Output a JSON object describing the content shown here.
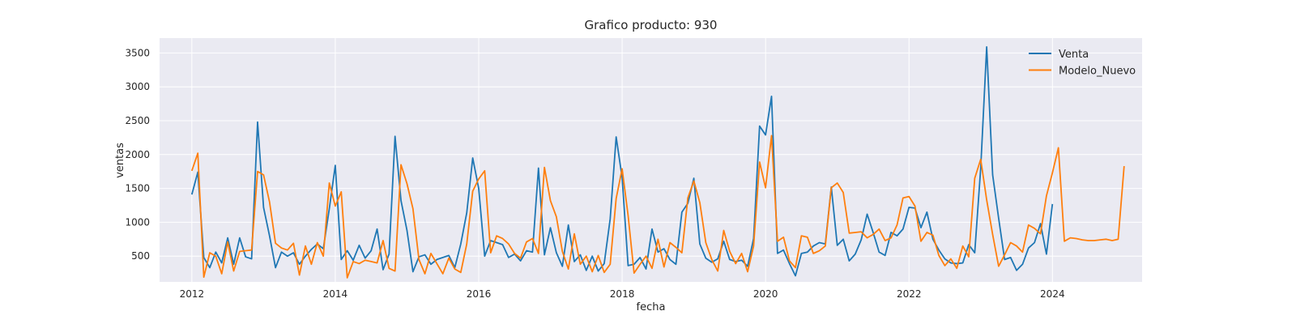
{
  "chart_data": {
    "type": "line",
    "title": "Grafico producto: 930",
    "xlabel": "fecha",
    "ylabel": "ventas",
    "xlim": [
      2011.55,
      2025.25
    ],
    "ylim": [
      120,
      3720
    ],
    "x_ticks": [
      2012,
      2014,
      2016,
      2018,
      2020,
      2022,
      2024
    ],
    "y_ticks": [
      500,
      1000,
      1500,
      2000,
      2500,
      3000,
      3500
    ],
    "grid": true,
    "background_color": "#eaeaf2",
    "legend_position": "upper right",
    "series": [
      {
        "name": "Venta",
        "color": "#1f77b4",
        "x_start": 2012.0,
        "x_step": 0.08333,
        "values": [
          1410,
          1740,
          480,
          330,
          560,
          400,
          770,
          380,
          770,
          490,
          460,
          2480,
          1220,
          800,
          330,
          560,
          500,
          550,
          380,
          500,
          600,
          680,
          610,
          1200,
          1840,
          450,
          580,
          440,
          660,
          470,
          580,
          900,
          300,
          530,
          2270,
          1320,
          880,
          270,
          490,
          520,
          380,
          450,
          480,
          510,
          330,
          680,
          1140,
          1950,
          1500,
          500,
          730,
          700,
          670,
          480,
          530,
          430,
          580,
          560,
          1800,
          520,
          920,
          550,
          350,
          960,
          420,
          520,
          290,
          500,
          280,
          390,
          1050,
          2260,
          1660,
          360,
          380,
          480,
          310,
          900,
          560,
          610,
          450,
          380,
          1150,
          1280,
          1650,
          680,
          470,
          410,
          460,
          720,
          450,
          420,
          440,
          350,
          760,
          2420,
          2290,
          2860,
          540,
          590,
          390,
          210,
          540,
          560,
          650,
          700,
          680,
          1520,
          660,
          750,
          430,
          530,
          740,
          1120,
          850,
          560,
          510,
          850,
          800,
          900,
          1220,
          1210,
          920,
          1150,
          750,
          590,
          460,
          400,
          390,
          400,
          670,
          550,
          1800,
          3590,
          1700,
          1060,
          450,
          480,
          290,
          380,
          620,
          700,
          980,
          530,
          1270
        ]
      },
      {
        "name": "Modelo_Nuevo",
        "color": "#ff7f0e",
        "x_start": 2012.0,
        "x_step": 0.08333,
        "values": [
          1760,
          2020,
          190,
          550,
          500,
          240,
          710,
          280,
          570,
          580,
          590,
          1750,
          1700,
          1300,
          690,
          620,
          590,
          690,
          220,
          650,
          380,
          700,
          500,
          1580,
          1240,
          1450,
          180,
          420,
          390,
          440,
          420,
          400,
          730,
          320,
          280,
          1850,
          1570,
          1200,
          450,
          240,
          540,
          390,
          240,
          470,
          310,
          260,
          680,
          1460,
          1640,
          1760,
          550,
          800,
          760,
          680,
          540,
          470,
          710,
          760,
          540,
          1810,
          1320,
          1080,
          570,
          310,
          830,
          380,
          500,
          270,
          510,
          260,
          380,
          1350,
          1790,
          1100,
          250,
          380,
          500,
          320,
          750,
          340,
          700,
          630,
          550,
          1360,
          1610,
          1290,
          700,
          450,
          280,
          880,
          570,
          390,
          540,
          270,
          650,
          1890,
          1510,
          2280,
          720,
          780,
          430,
          330,
          800,
          780,
          540,
          580,
          650,
          1510,
          1580,
          1440,
          840,
          850,
          860,
          770,
          820,
          900,
          730,
          770,
          960,
          1360,
          1380,
          1240,
          720,
          850,
          810,
          510,
          360,
          460,
          320,
          650,
          490,
          1650,
          1930,
          1330,
          820,
          350,
          520,
          700,
          650,
          560,
          960,
          910,
          830,
          1390,
          1730,
          2100,
          720,
          770,
          760,
          740,
          730,
          730,
          740,
          750,
          730,
          750,
          1830
        ]
      }
    ]
  }
}
